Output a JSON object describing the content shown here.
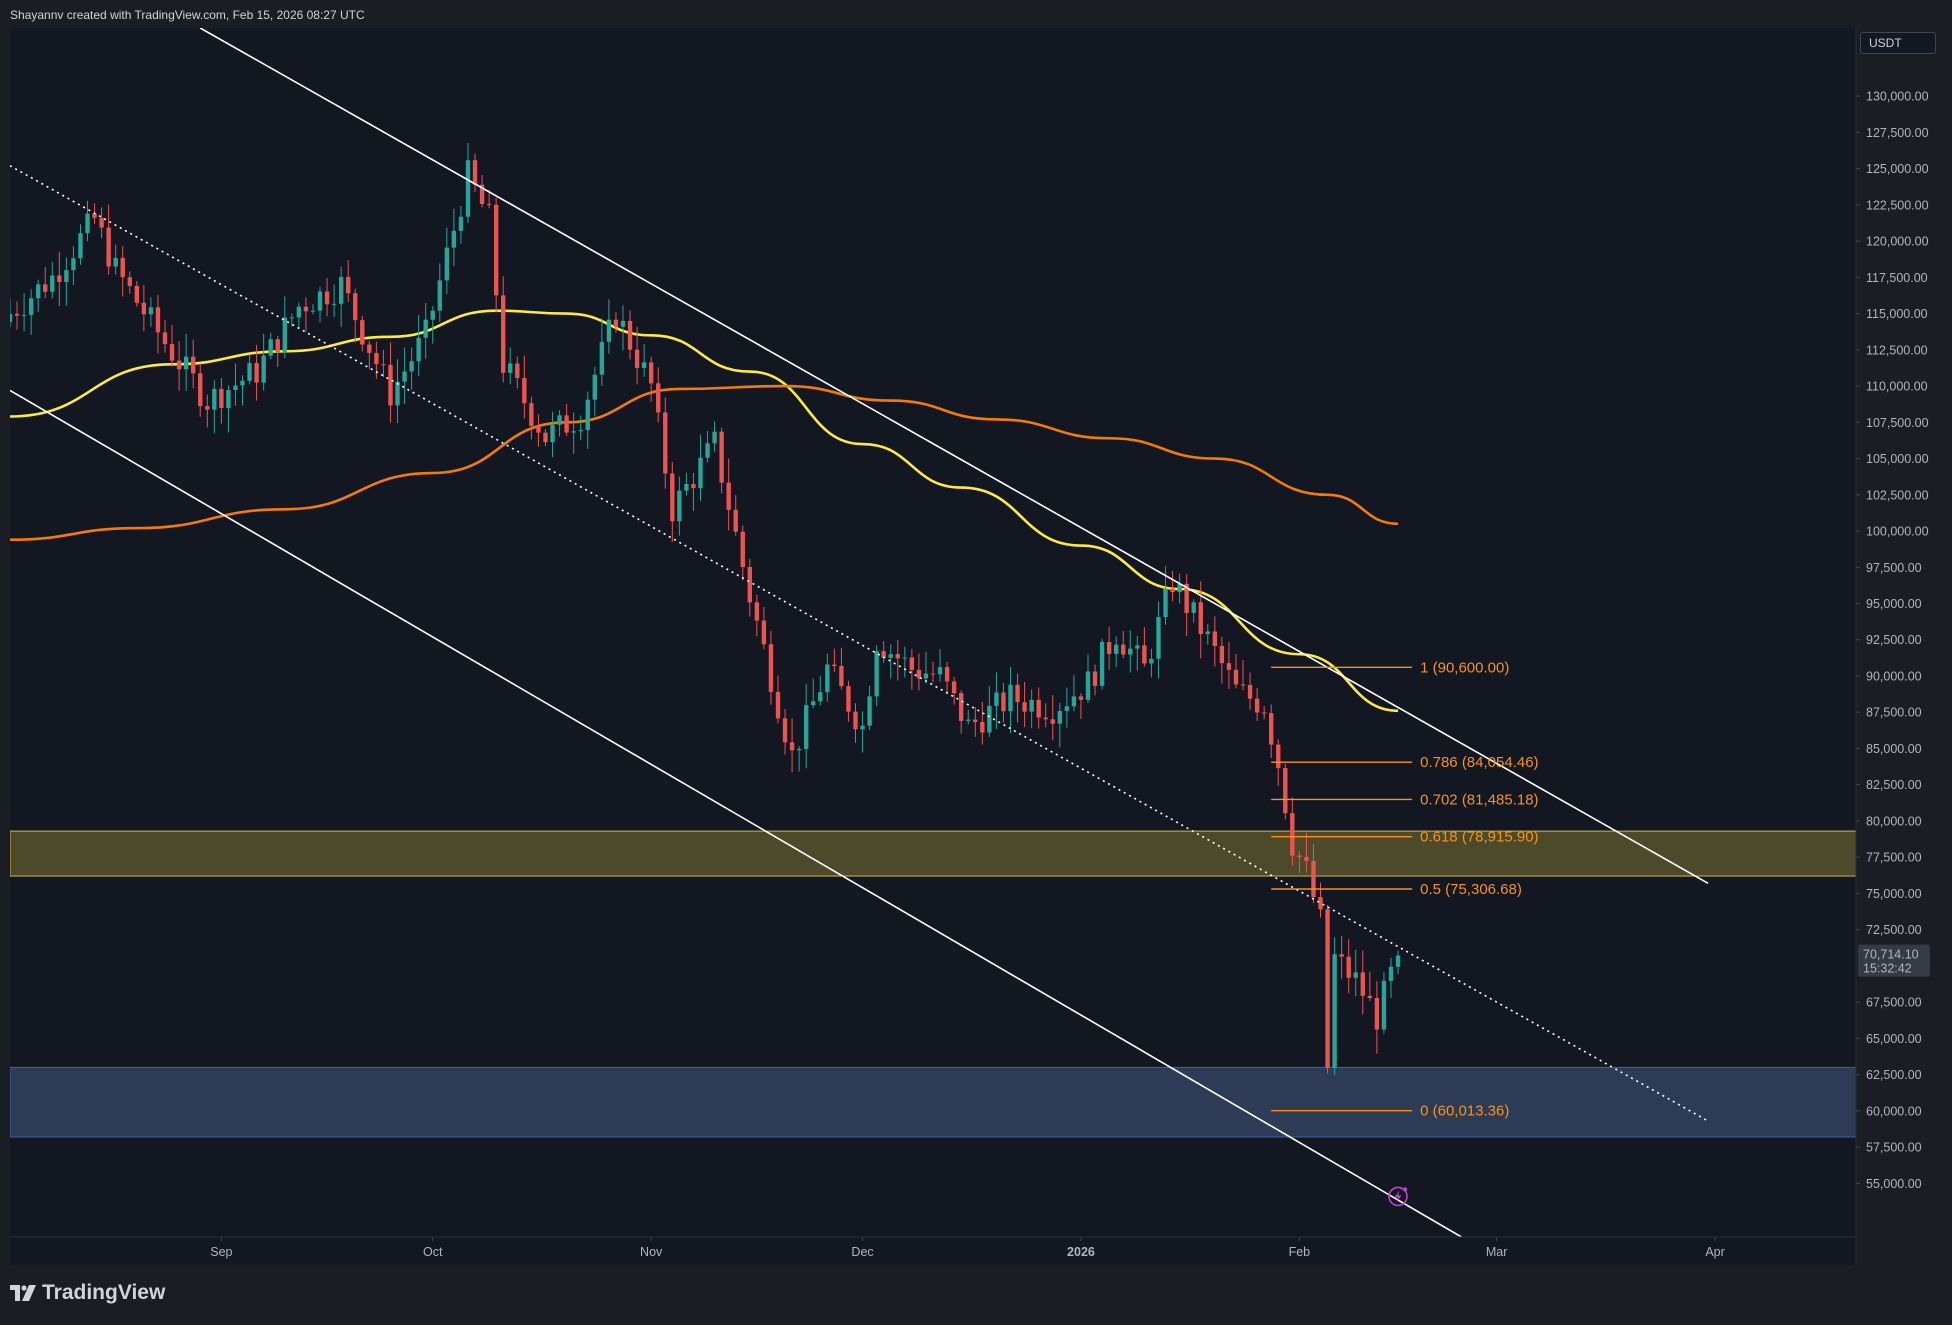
{
  "header": {
    "credit": "Shayannv created with TradingView.com, Feb 15, 2026 08:27 UTC"
  },
  "brand": {
    "name": "TradingView",
    "icon": "tradingview-logo-icon"
  },
  "colors": {
    "background": "#131722",
    "frame": "#1b1d24",
    "up_candle": "#26a69a",
    "down_candle": "#ef5350",
    "ma_yellow": "#ffeb3b",
    "ma_orange": "#f57c00",
    "fib": "#f7931a",
    "resistance_zone": "#4d4a2b",
    "support_zone": "#2e3b57",
    "channel": "#ffffff"
  },
  "chart_data": {
    "type": "candlestick",
    "symbol_currency": "USDT",
    "price_axis": {
      "ticks": [
        "130,000.00",
        "127,500.00",
        "125,000.00",
        "122,500.00",
        "120,000.00",
        "117,500.00",
        "115,000.00",
        "112,500.00",
        "110,000.00",
        "107,500.00",
        "105,000.00",
        "102,500.00",
        "100,000.00",
        "97,500.00",
        "95,000.00",
        "92,500.00",
        "90,000.00",
        "87,500.00",
        "85,000.00",
        "82,500.00",
        "80,000.00",
        "77,500.00",
        "75,000.00",
        "72,500.00",
        "67,500.00",
        "65,000.00",
        "62,500.00",
        "60,000.00",
        "57,500.00",
        "55,000.00"
      ],
      "range": [
        51300,
        134700
      ]
    },
    "time_axis": {
      "range": [
        "2025-08-02",
        "2026-04-21"
      ],
      "ticks": [
        {
          "label": "Sep",
          "date": "2025-09-01",
          "bold": false
        },
        {
          "label": "Oct",
          "date": "2025-10-01",
          "bold": false
        },
        {
          "label": "Nov",
          "date": "2025-11-01",
          "bold": false
        },
        {
          "label": "Dec",
          "date": "2025-12-01",
          "bold": false
        },
        {
          "label": "2026",
          "date": "2026-01-01",
          "bold": true
        },
        {
          "label": "Feb",
          "date": "2026-02-01",
          "bold": false
        },
        {
          "label": "Mar",
          "date": "2026-03-01",
          "bold": false
        },
        {
          "label": "Apr",
          "date": "2026-04-01",
          "bold": false
        }
      ]
    },
    "last_price": {
      "value": 70714.1,
      "label": "70,714.10",
      "countdown": "15:32:42"
    },
    "daily_close_path": {
      "start": "2025-08-02",
      "end": "2026-02-15",
      "keypoints": [
        {
          "date": "2025-08-02",
          "close": 115000
        },
        {
          "date": "2025-08-08",
          "close": 117500
        },
        {
          "date": "2025-08-14",
          "close": 121500
        },
        {
          "date": "2025-08-17",
          "close": 118000
        },
        {
          "date": "2025-08-24",
          "close": 113000
        },
        {
          "date": "2025-08-30",
          "close": 109000
        },
        {
          "date": "2025-09-06",
          "close": 111000
        },
        {
          "date": "2025-09-12",
          "close": 115500
        },
        {
          "date": "2025-09-18",
          "close": 117000
        },
        {
          "date": "2025-09-25",
          "close": 109500
        },
        {
          "date": "2025-09-30",
          "close": 113500
        },
        {
          "date": "2025-10-06",
          "close": 124500
        },
        {
          "date": "2025-10-09",
          "close": 121500
        },
        {
          "date": "2025-10-11",
          "close": 111500
        },
        {
          "date": "2025-10-17",
          "close": 106500
        },
        {
          "date": "2025-10-22",
          "close": 108000
        },
        {
          "date": "2025-10-27",
          "close": 115000
        },
        {
          "date": "2025-11-01",
          "close": 110000
        },
        {
          "date": "2025-11-04",
          "close": 101500
        },
        {
          "date": "2025-11-10",
          "close": 106000
        },
        {
          "date": "2025-11-15",
          "close": 95500
        },
        {
          "date": "2025-11-21",
          "close": 84500
        },
        {
          "date": "2025-11-26",
          "close": 90500
        },
        {
          "date": "2025-12-01",
          "close": 86500
        },
        {
          "date": "2025-12-03",
          "close": 92500
        },
        {
          "date": "2025-12-08",
          "close": 90500
        },
        {
          "date": "2025-12-12",
          "close": 90000
        },
        {
          "date": "2025-12-16",
          "close": 86500
        },
        {
          "date": "2025-12-22",
          "close": 88500
        },
        {
          "date": "2025-12-28",
          "close": 87800
        },
        {
          "date": "2026-01-02",
          "close": 89500
        },
        {
          "date": "2026-01-06",
          "close": 93000
        },
        {
          "date": "2026-01-10",
          "close": 90500
        },
        {
          "date": "2026-01-14",
          "close": 96500
        },
        {
          "date": "2026-01-19",
          "close": 92500
        },
        {
          "date": "2026-01-23",
          "close": 89000
        },
        {
          "date": "2026-01-27",
          "close": 88000
        },
        {
          "date": "2026-01-29",
          "close": 84000
        },
        {
          "date": "2026-01-31",
          "close": 78500
        },
        {
          "date": "2026-02-02",
          "close": 76500
        },
        {
          "date": "2026-02-04",
          "close": 73000
        },
        {
          "date": "2026-02-05",
          "close": 63000
        },
        {
          "date": "2026-02-06",
          "close": 70500
        },
        {
          "date": "2026-02-09",
          "close": 69000
        },
        {
          "date": "2026-02-12",
          "close": 66500
        },
        {
          "date": "2026-02-15",
          "close": 70714
        }
      ]
    },
    "moving_averages": [
      {
        "color": "#ffeb3b",
        "points": [
          {
            "date": "2025-08-02",
            "value": 107900
          },
          {
            "date": "2025-08-25",
            "value": 111500
          },
          {
            "date": "2025-09-10",
            "value": 112400
          },
          {
            "date": "2025-09-25",
            "value": 113400
          },
          {
            "date": "2025-10-10",
            "value": 115200
          },
          {
            "date": "2025-10-20",
            "value": 115000
          },
          {
            "date": "2025-11-01",
            "value": 113500
          },
          {
            "date": "2025-11-15",
            "value": 111000
          },
          {
            "date": "2025-12-01",
            "value": 106000
          },
          {
            "date": "2025-12-15",
            "value": 103000
          },
          {
            "date": "2026-01-01",
            "value": 99000
          },
          {
            "date": "2026-01-15",
            "value": 96000
          },
          {
            "date": "2026-02-01",
            "value": 91500
          },
          {
            "date": "2026-02-15",
            "value": 87600
          }
        ]
      },
      {
        "color": "#f57c00",
        "points": [
          {
            "date": "2025-08-02",
            "value": 99400
          },
          {
            "date": "2025-08-20",
            "value": 100200
          },
          {
            "date": "2025-09-10",
            "value": 101500
          },
          {
            "date": "2025-10-01",
            "value": 104000
          },
          {
            "date": "2025-10-20",
            "value": 107500
          },
          {
            "date": "2025-11-05",
            "value": 109800
          },
          {
            "date": "2025-11-20",
            "value": 110000
          },
          {
            "date": "2025-12-05",
            "value": 109000
          },
          {
            "date": "2025-12-20",
            "value": 107700
          },
          {
            "date": "2026-01-05",
            "value": 106400
          },
          {
            "date": "2026-01-20",
            "value": 105000
          },
          {
            "date": "2026-02-05",
            "value": 102500
          },
          {
            "date": "2026-02-15",
            "value": 100500
          }
        ]
      }
    ],
    "channel_lines": [
      {
        "style": "solid",
        "from": {
          "date": "2025-08-29",
          "price": 134700
        },
        "to": {
          "date": "2026-03-31",
          "price": 75700
        }
      },
      {
        "style": "dotted",
        "from": {
          "date": "2025-08-02",
          "price": 125200
        },
        "to": {
          "date": "2026-03-31",
          "price": 59300
        }
      },
      {
        "style": "solid",
        "from": {
          "date": "2025-08-02",
          "price": 109700
        },
        "to": {
          "date": "2026-02-24",
          "price": 51300
        }
      }
    ],
    "zones": [
      {
        "type": "resistance",
        "from": 76200,
        "to": 79300
      },
      {
        "type": "support",
        "from": 58200,
        "to": 63000
      }
    ],
    "fibonacci": {
      "start_date": "2026-01-28",
      "end_date": "2026-02-17",
      "levels": [
        {
          "ratio": 1,
          "price": 90600.0,
          "label": "1 (90,600.00)"
        },
        {
          "ratio": 0.786,
          "price": 84054.46,
          "label": "0.786 (84,054.46)"
        },
        {
          "ratio": 0.702,
          "price": 81485.18,
          "label": "0.702 (81,485.18)"
        },
        {
          "ratio": 0.618,
          "price": 78915.9,
          "label": "0.618 (78,915.90)"
        },
        {
          "ratio": 0.5,
          "price": 75306.68,
          "label": "0.5 (75,306.68)"
        },
        {
          "ratio": 0,
          "price": 60013.36,
          "label": "0 (60,013.36)"
        }
      ]
    },
    "markers": [
      {
        "type": "lightning-icon",
        "date": "2026-02-15",
        "price": 54100
      }
    ]
  }
}
